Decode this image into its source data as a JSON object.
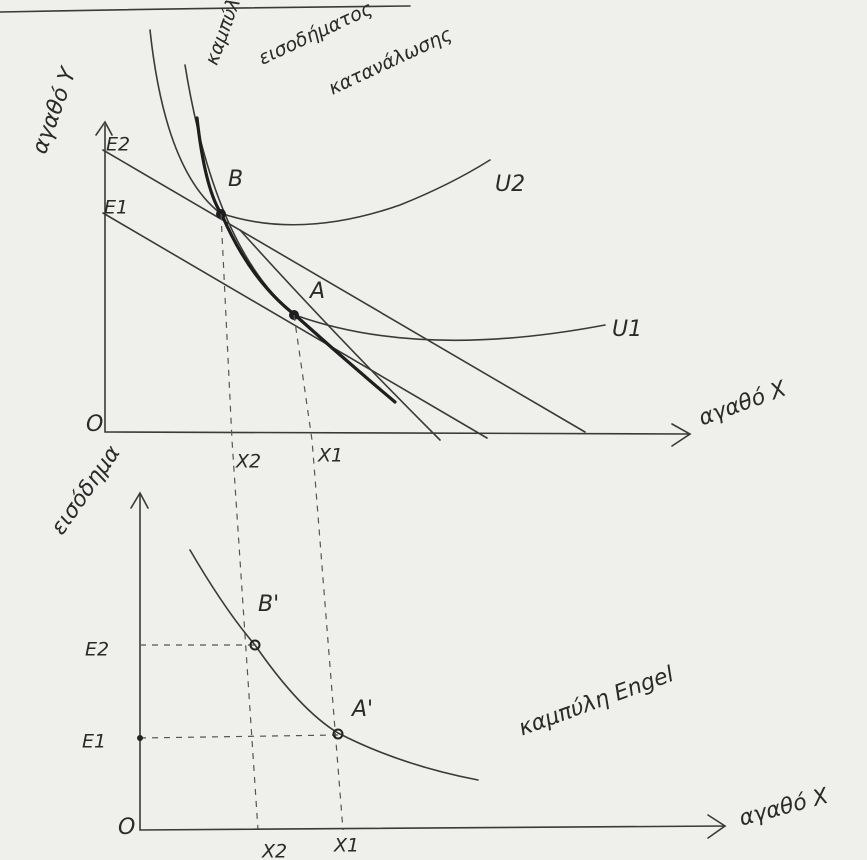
{
  "top_panel": {
    "y_axis_label": "αγαθό Y",
    "x_axis_label": "αγαθό X",
    "origin": "O",
    "curve_label": [
      "καμπύλη",
      "εισοδήματος",
      "κατανάλωσης"
    ],
    "budget_labels": [
      "E2",
      "E1"
    ],
    "indifference_labels": [
      "U2",
      "U1"
    ],
    "points": [
      "B",
      "A"
    ],
    "x_ticks": [
      "X2",
      "X1"
    ]
  },
  "bottom_panel": {
    "y_axis_label": "εισόδημα",
    "x_axis_label": "αγαθό X",
    "origin": "O",
    "curve_label": "καμπύλη Engel",
    "y_ticks": [
      "E2",
      "E1"
    ],
    "points": [
      "B'",
      "A'"
    ],
    "x_ticks": [
      "X2",
      "X1"
    ]
  }
}
